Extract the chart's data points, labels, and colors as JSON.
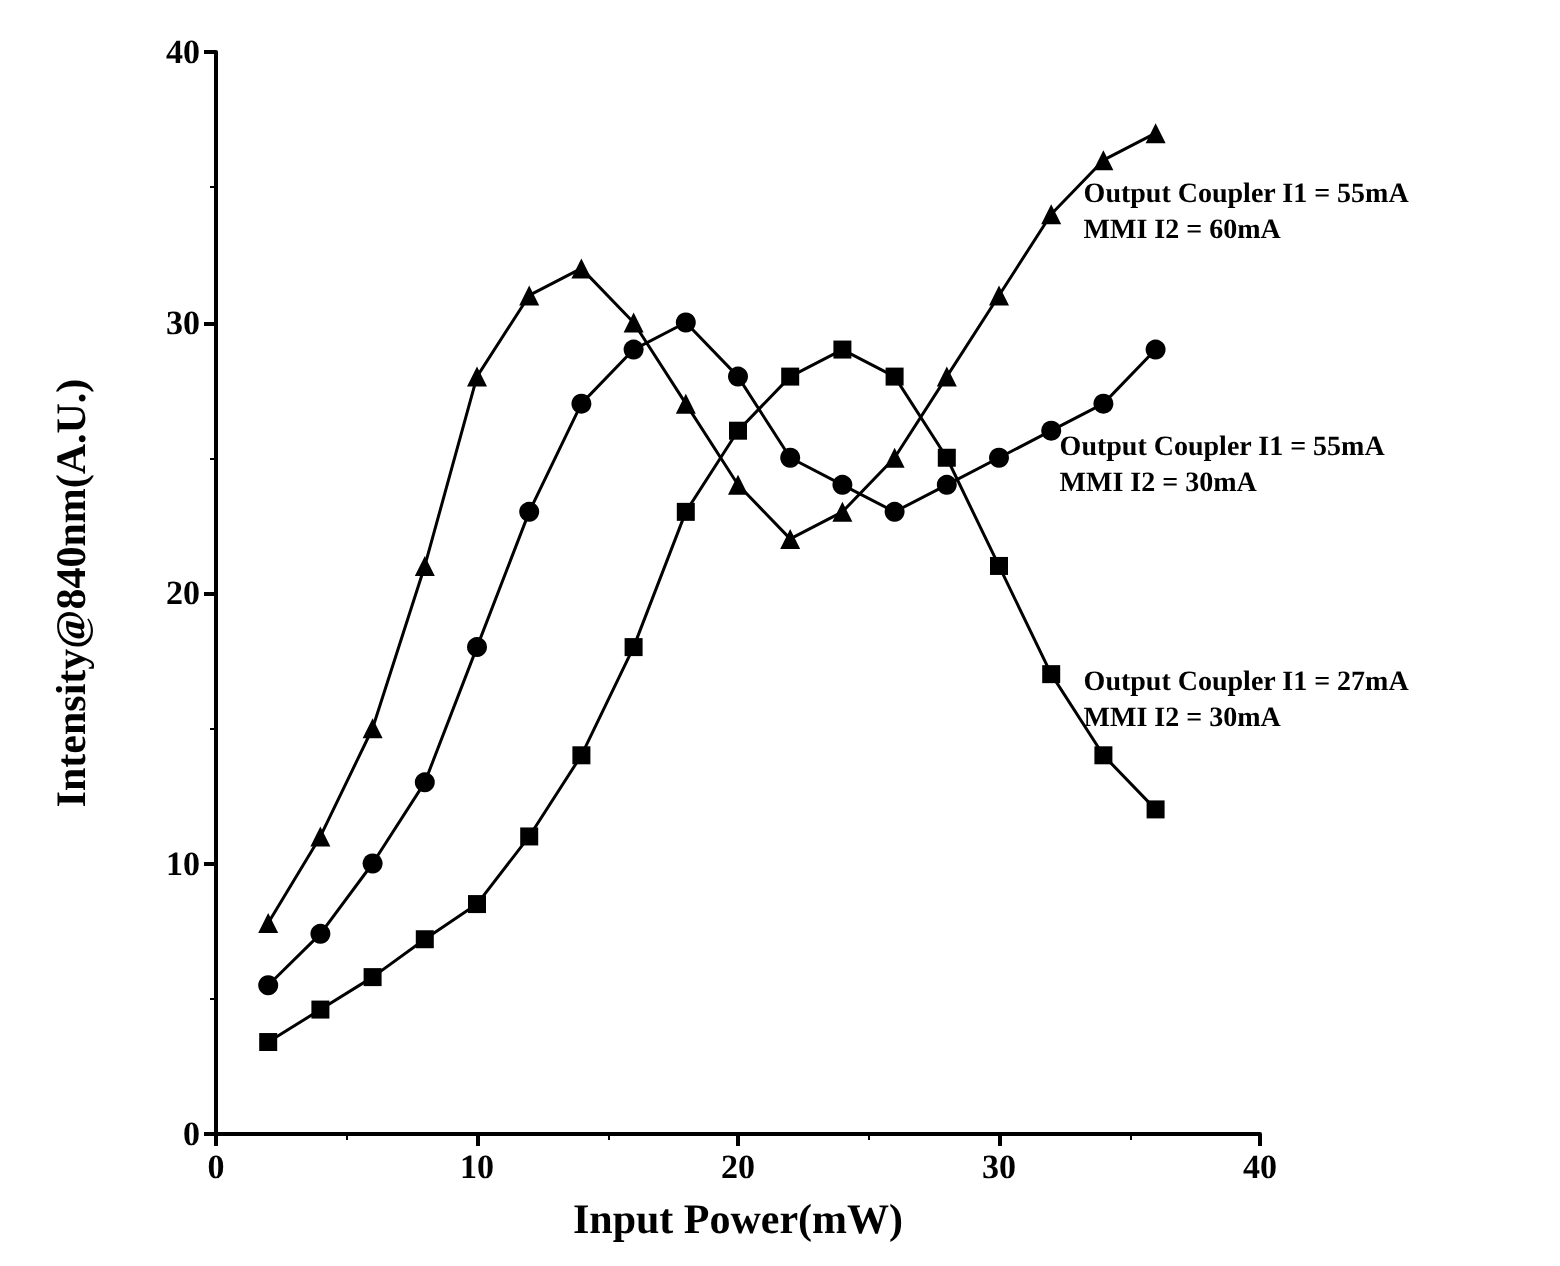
{
  "chart_data": {
    "type": "line",
    "xlabel": "Input Power(mW)",
    "ylabel": "Intensity@840nm(A.U.)",
    "x": [
      2,
      4,
      6,
      8,
      10,
      12,
      14,
      16,
      18,
      20,
      22,
      24,
      26,
      28,
      30,
      32,
      34,
      36
    ],
    "series": [
      {
        "name": "Output Coupler I1 = 55mA\nMMI I2 = 60mA",
        "color": "#000000",
        "marker": "triangle",
        "values": [
          7.8,
          11,
          15,
          21,
          28,
          31,
          32,
          30,
          27,
          24,
          22,
          23,
          25,
          28,
          31,
          34,
          36,
          37
        ]
      },
      {
        "name": "Output Coupler I1 = 55mA\nMMI I2 = 30mA",
        "color": "#000000",
        "marker": "circle",
        "values": [
          5.5,
          7.4,
          10,
          13,
          18,
          23,
          27,
          29,
          30,
          28,
          25,
          24,
          23,
          24,
          25,
          26,
          27,
          29
        ]
      },
      {
        "name": "Output Coupler I1 = 27mA\nMMI I2 = 30mA",
        "color": "#000000",
        "marker": "square",
        "values": [
          3.4,
          4.6,
          5.8,
          7.2,
          8.5,
          11,
          14,
          18,
          23,
          26,
          28,
          29,
          28,
          25,
          21,
          17,
          14,
          12
        ]
      }
    ],
    "xlim": [
      0,
      40
    ],
    "xticks": [
      0,
      10,
      20,
      30,
      40
    ],
    "ylim": [
      0,
      40
    ],
    "yticks": [
      0,
      10,
      20,
      30,
      40
    ],
    "grid": false,
    "legend": false,
    "line_style": "solid"
  }
}
